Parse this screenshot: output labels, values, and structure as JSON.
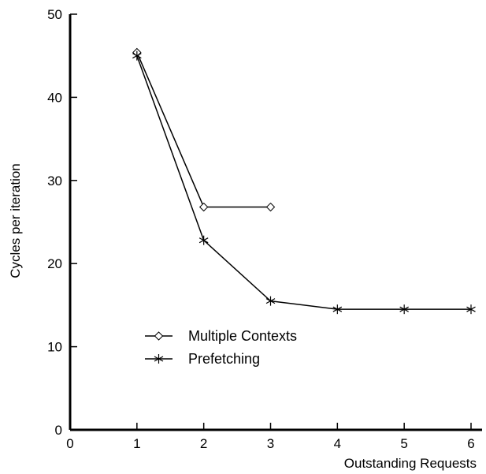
{
  "chart_data": {
    "type": "line",
    "xlabel": "Outstanding Requests",
    "ylabel": "Cycles per iteration",
    "xlim": [
      0,
      6
    ],
    "ylim": [
      0,
      50
    ],
    "x_ticks": [
      0,
      1,
      2,
      3,
      4,
      5,
      6
    ],
    "y_ticks": [
      0,
      10,
      20,
      30,
      40,
      50
    ],
    "grid": false,
    "legend_position": "center-left",
    "series": [
      {
        "name": "Multiple Contexts",
        "marker": "diamond",
        "x": [
          1,
          2,
          3
        ],
        "y": [
          45.4,
          26.8,
          26.8
        ]
      },
      {
        "name": "Prefetching",
        "marker": "asterisk",
        "x": [
          1,
          2,
          3,
          4,
          5,
          6
        ],
        "y": [
          45.0,
          22.8,
          15.5,
          14.5,
          14.5,
          14.5
        ]
      }
    ],
    "colors": {
      "line": "#000000",
      "background": "#ffffff"
    }
  }
}
